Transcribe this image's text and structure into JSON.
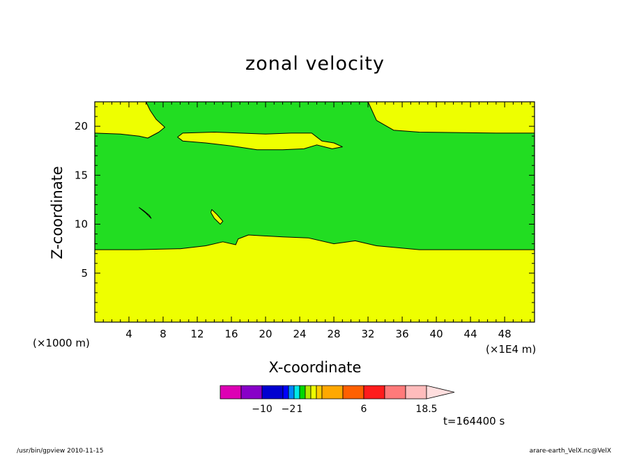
{
  "chart_data": {
    "type": "heatmap",
    "title": "zonal velocity",
    "xlabel": "X-coordinate",
    "ylabel": "Z-coordinate",
    "x_unit_label": "(×1000 m)",
    "x_unit_label_right": "(×1E4 m)",
    "xlim": [
      0,
      51.5
    ],
    "ylim": [
      0,
      22.5
    ],
    "xticks": [
      "4",
      "8",
      "12",
      "16",
      "20",
      "24",
      "28",
      "32",
      "36",
      "40",
      "44",
      "48"
    ],
    "yticks": [
      "5",
      "10",
      "15",
      "20"
    ],
    "background_region_color": "#eeff00",
    "filled_regions": [
      {
        "color": "#22dd22",
        "outline": [
          [
            6,
            22.5
          ],
          [
            6.5,
            21.6
          ],
          [
            7.2,
            20.7
          ],
          [
            8.2,
            19.9
          ],
          [
            7.5,
            19.4
          ],
          [
            6.2,
            18.8
          ],
          [
            5.2,
            19
          ],
          [
            3,
            19.2
          ],
          [
            0,
            19.3
          ],
          [
            0,
            7.4
          ],
          [
            5,
            7.4
          ],
          [
            10,
            7.5
          ],
          [
            13,
            7.8
          ],
          [
            15,
            8.2
          ],
          [
            16.5,
            7.9
          ],
          [
            16.8,
            8.5
          ],
          [
            18,
            8.9
          ],
          [
            22,
            8.7
          ],
          [
            25,
            8.6
          ],
          [
            28,
            8
          ],
          [
            30.5,
            8.3
          ],
          [
            33,
            7.8
          ],
          [
            38,
            7.4
          ],
          [
            44,
            7.4
          ],
          [
            51.5,
            7.4
          ],
          [
            51.5,
            19.3
          ],
          [
            47,
            19.3
          ],
          [
            38,
            19.4
          ],
          [
            35,
            19.6
          ],
          [
            33,
            20.6
          ],
          [
            32,
            22.5
          ]
        ]
      }
    ],
    "embedded_regions": [
      {
        "color": "#eeff00",
        "outline": [
          [
            9.7,
            18.9
          ],
          [
            10.3,
            19.3
          ],
          [
            14,
            19.4
          ],
          [
            17,
            19.3
          ],
          [
            20,
            19.2
          ],
          [
            23,
            19.3
          ],
          [
            25.4,
            19.3
          ],
          [
            26.6,
            18.5
          ],
          [
            28,
            18.3
          ],
          [
            29,
            17.9
          ],
          [
            27.8,
            17.7
          ],
          [
            26,
            18.1
          ],
          [
            24.5,
            17.7
          ],
          [
            22,
            17.6
          ],
          [
            19,
            17.6
          ],
          [
            16,
            18
          ],
          [
            13,
            18.3
          ],
          [
            10.3,
            18.5
          ]
        ]
      },
      {
        "color": "#eeff00",
        "outline": [
          [
            5.2,
            11.7
          ],
          [
            5.9,
            11.2
          ],
          [
            6.6,
            10.6
          ],
          [
            6.4,
            10.9
          ],
          [
            5.7,
            11.4
          ]
        ]
      },
      {
        "color": "#eeff00",
        "outline": [
          [
            13.7,
            11.5
          ],
          [
            14.3,
            11
          ],
          [
            15,
            10.3
          ],
          [
            14.7,
            10
          ],
          [
            14,
            10.6
          ],
          [
            13.6,
            11.2
          ]
        ]
      }
    ],
    "colorbar": {
      "colors": [
        "#dd00b4",
        "#8800c8",
        "#0000d0",
        "#0000ff",
        "#0088ff",
        "#00e8e8",
        "#00d800",
        "#b4e800",
        "#eeff00",
        "#ffcc00",
        "#ffa800",
        "#ff6000",
        "#ff1c1c",
        "#ff7a7a",
        "#ffbcbc"
      ],
      "arrow_color": "#ffdede",
      "tick_labels": [
        "−10",
        "−2",
        "1",
        "6",
        "18.5"
      ]
    }
  },
  "time_label": "t=164400 s",
  "footer": {
    "left": "/usr/bin/gpview  2010-11-15",
    "right": "arare-earth_VelX.nc@VelX"
  }
}
